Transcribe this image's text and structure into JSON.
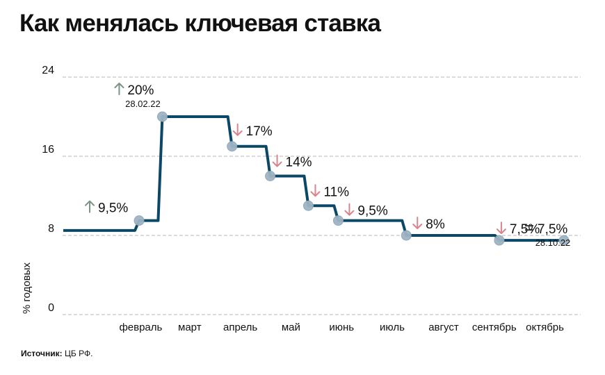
{
  "title": "Как менялась ключевая ставка",
  "source": {
    "label": "Источник:",
    "value": "ЦБ РФ."
  },
  "chart_data": {
    "type": "line",
    "step": true,
    "ylabel": "% годовых",
    "ylim": [
      0,
      24
    ],
    "yticks": [
      0,
      8,
      16,
      24
    ],
    "grid": true,
    "months": [
      "февраль",
      "март",
      "апрель",
      "май",
      "июнь",
      "июль",
      "август",
      "сентябрь",
      "октябрь"
    ],
    "series": [
      {
        "values": [
          {
            "x": "2022-01-01",
            "y": 8.5
          },
          {
            "x": "2022-02-14",
            "y": 9.5
          },
          {
            "x": "2022-02-28",
            "y": 20
          },
          {
            "x": "2022-04-11",
            "y": 17
          },
          {
            "x": "2022-05-04",
            "y": 14
          },
          {
            "x": "2022-05-27",
            "y": 11
          },
          {
            "x": "2022-06-14",
            "y": 9.5
          },
          {
            "x": "2022-07-25",
            "y": 8
          },
          {
            "x": "2022-09-19",
            "y": 7.5
          },
          {
            "x": "2022-10-28",
            "y": 7.5
          }
        ]
      }
    ],
    "annotations": [
      {
        "x": "2022-02-14",
        "y": 9.5,
        "arrow": "up",
        "text": "9,5%"
      },
      {
        "x": "2022-02-28",
        "y": 20,
        "arrow": "up",
        "text": "20%",
        "date": "28.02.22"
      },
      {
        "x": "2022-04-11",
        "y": 17,
        "arrow": "down",
        "text": "17%"
      },
      {
        "x": "2022-05-04",
        "y": 14,
        "arrow": "down",
        "text": "14%"
      },
      {
        "x": "2022-05-27",
        "y": 11,
        "arrow": "down",
        "text": "11%"
      },
      {
        "x": "2022-06-14",
        "y": 9.5,
        "arrow": "down",
        "text": "9,5%"
      },
      {
        "x": "2022-07-25",
        "y": 8,
        "arrow": "down",
        "text": "8%"
      },
      {
        "x": "2022-09-19",
        "y": 7.5,
        "arrow": "down",
        "text": "7,5%"
      },
      {
        "x": "2022-10-28",
        "y": 7.5,
        "arrow": "equal",
        "text": "7,5%",
        "date": "28.10.22"
      }
    ],
    "colors": {
      "line": "#0b4766",
      "marker": "#9fb4c4",
      "grid": "#b4b4b4",
      "arrow_up": "#7a9486",
      "arrow_down": "#d9848e",
      "arrow_equal": "#333333"
    }
  }
}
